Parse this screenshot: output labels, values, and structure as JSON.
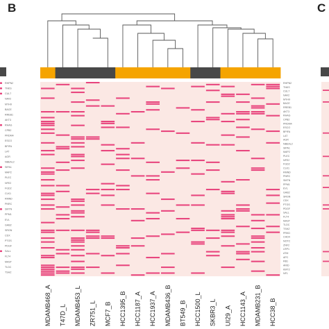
{
  "panels": {
    "b_label": "B",
    "c_label": "C"
  },
  "colors": {
    "background_cell": "#fbe8e4",
    "present_cell": "#e8467e",
    "group_orange": "#f5a400",
    "group_gray": "#484848",
    "dendrogram": "#555555"
  },
  "heatmap": {
    "samples": [
      "MDAMB468_A",
      "T47D_L",
      "MDAMB453_L",
      "ZR751_L",
      "MCF7_B",
      "HCC1395_B",
      "HCC1187_A",
      "HCC1937_A",
      "MDAMB436_B",
      "BT549_B",
      "HCC1500_L",
      "SKBR3_L",
      "UI29_A",
      "HCC1143_A",
      "MDAMB231_B",
      "HCC38_B"
    ],
    "sample_groups": [
      "orange",
      "gray",
      "gray",
      "gray",
      "gray",
      "orange",
      "orange",
      "orange",
      "orange",
      "orange",
      "gray",
      "gray",
      "orange",
      "orange",
      "orange",
      "orange"
    ],
    "left_gene_labels": [
      "RHPN2",
      "TNKS",
      "CUL7",
      "NAV2",
      "MYH9",
      "BACE",
      "RREB1",
      "AKT3",
      "RHAG",
      "CPB2",
      "PRDM4",
      "ESCO",
      "BPIFA",
      "LAT",
      "AGR",
      "NBEAL2",
      "SIPA1",
      "MAP2",
      "PLEC",
      "NFE2",
      "FGD2",
      "CLK1",
      "RMND",
      "PNRC",
      "SMTN",
      "PPM1",
      "EVL",
      "GAB2",
      "SRGN",
      "CDX",
      "PTGS",
      "PDGF",
      "SALL",
      "FLT4",
      "MAST",
      "TLDC",
      "TSHZ"
    ],
    "right_gene_labels": [
      "RHPN2",
      "TNKS",
      "CUL7",
      "NAV2",
      "MYH9",
      "BACE",
      "RREB1",
      "AKT3",
      "RHAG",
      "CPB2",
      "PRDM4",
      "ESCO",
      "BPIFA",
      "LAT",
      "AGR",
      "NBEAL2",
      "SIPA1",
      "MAP2",
      "PLEC",
      "NFE2",
      "FGD2",
      "CLK1",
      "RMND",
      "PNRC",
      "SMTN",
      "PPM1",
      "EVL",
      "GAB2",
      "SRGN",
      "CDX",
      "PTGS",
      "PDGF",
      "SALL",
      "FLT4",
      "MAST",
      "TLDC",
      "TSHZ",
      "PRKD",
      "CHD4",
      "NOTC",
      "ZNF2",
      "LRP1",
      "ATM",
      "APC",
      "RB1",
      "ARID",
      "KMT2",
      "NF1"
    ]
  }
}
